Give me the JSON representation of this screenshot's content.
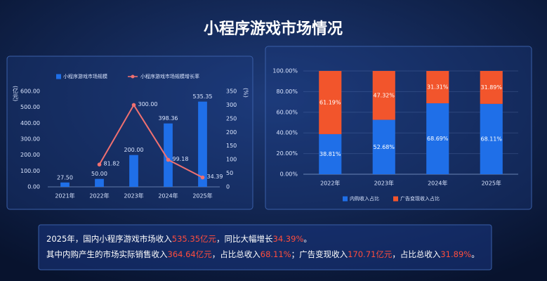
{
  "title": "小程序游戏市场情况",
  "chart_data": [
    {
      "type": "bar",
      "categories": [
        "2021年",
        "2022年",
        "2023年",
        "2024年",
        "2025年"
      ],
      "ylabel": "(亿元)",
      "y2label": "(%)",
      "series": [
        {
          "name": "小程序游戏市场规模",
          "color": "#1f6fe8",
          "values": [
            27.5,
            50.0,
            200.0,
            398.36,
            535.35
          ],
          "value_labels": [
            "27.50",
            "50.00",
            "200.00",
            "398.36",
            "535.35"
          ]
        },
        {
          "name": "小程序游戏市场规模增长率",
          "type": "line",
          "axis": "y2",
          "color": "#f07070",
          "values": [
            null,
            81.82,
            300.0,
            99.18,
            34.39
          ],
          "value_labels": [
            null,
            "81.82",
            "300.00",
            "99.18",
            "34.39"
          ]
        }
      ],
      "ylim": [
        0,
        600
      ],
      "yticks": [
        {
          "value": 0,
          "label": "0.00"
        },
        {
          "value": 100,
          "label": "100.00"
        },
        {
          "value": 200,
          "label": "200.00"
        },
        {
          "value": 300,
          "label": "300.00"
        },
        {
          "value": 400,
          "label": "400.00"
        },
        {
          "value": 500,
          "label": "500.00"
        },
        {
          "value": 600,
          "label": "600.00"
        }
      ],
      "y2lim": [
        0,
        350
      ],
      "y2ticks": [
        0,
        50,
        100,
        150,
        200,
        250,
        300,
        350
      ],
      "grid": false
    },
    {
      "type": "bar",
      "stacked": true,
      "categories": [
        "2022年",
        "2023年",
        "2024年",
        "2025年"
      ],
      "series": [
        {
          "name": "内购收入占比",
          "color": "#1f6fe8",
          "values": [
            38.81,
            52.68,
            68.69,
            68.11
          ],
          "value_labels": [
            "38.81%",
            "52.68%",
            "68.69%",
            "68.11%"
          ]
        },
        {
          "name": "广告变现收入占比",
          "color": "#f2552c",
          "values": [
            61.19,
            47.32,
            31.31,
            31.89
          ],
          "value_labels": [
            "61.19%",
            "47.32%",
            "31.31%",
            "31.89%"
          ]
        }
      ],
      "ylim": [
        0,
        100
      ],
      "yticks": [
        {
          "value": 0,
          "label": "0.00%"
        },
        {
          "value": 20,
          "label": "20.00%"
        },
        {
          "value": 40,
          "label": "40.00%"
        },
        {
          "value": 60,
          "label": "60.00%"
        },
        {
          "value": 80,
          "label": "80.00%"
        },
        {
          "value": 100,
          "label": "100.00%"
        }
      ],
      "grid": true
    }
  ],
  "summary": [
    [
      {
        "text": "2025年，国内小程序游戏市场收入",
        "color": "#ffffff"
      },
      {
        "text": "535.35亿元",
        "color": "#ff4d3d"
      },
      {
        "text": "，同比大幅增长",
        "color": "#ffffff"
      },
      {
        "text": "34.39%",
        "color": "#ff4d3d"
      },
      {
        "text": "。",
        "color": "#ffffff"
      }
    ],
    [
      {
        "text": "其中内购产生的市场实际销售收入",
        "color": "#ffffff"
      },
      {
        "text": "364.64亿元",
        "color": "#ff4d3d"
      },
      {
        "text": "，占比总收入",
        "color": "#ffffff"
      },
      {
        "text": "68.11%",
        "color": "#ff4d3d"
      },
      {
        "text": "；广告变现收入",
        "color": "#ffffff"
      },
      {
        "text": "170.71亿元",
        "color": "#ff4d3d"
      },
      {
        "text": "，占比总收入",
        "color": "#ffffff"
      },
      {
        "text": "31.89%",
        "color": "#ff4d3d"
      },
      {
        "text": "。",
        "color": "#ffffff"
      }
    ]
  ]
}
